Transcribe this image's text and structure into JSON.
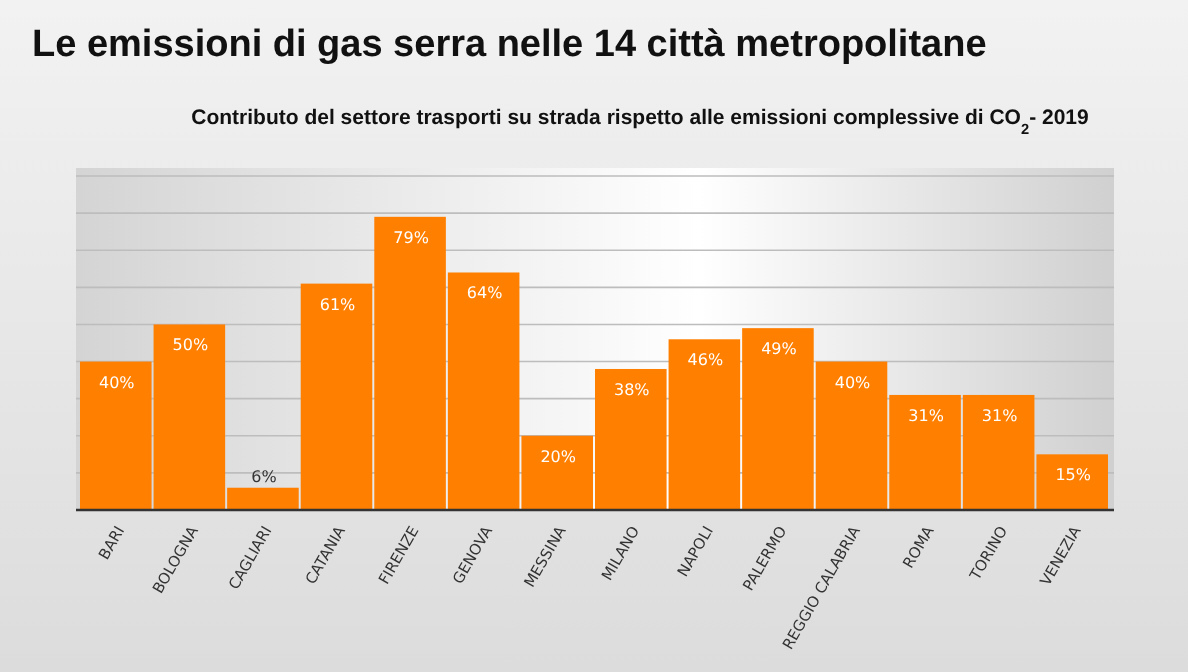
{
  "chart_data": {
    "type": "bar",
    "title": "Le emissioni di gas serra nelle 14 città metropolitane",
    "subtitle": "Contributo del settore trasporti su strada rispetto alle emissioni complessive di CO$_{2}$- 2019",
    "categories": [
      "BARI",
      "BOLOGNA",
      "CAGLIARI",
      "CATANIA",
      "FIRENZE",
      "GENOVA",
      "MESSINA",
      "MILANO",
      "NAPOLI",
      "PALERMO",
      "REGGIO CALABRIA",
      "ROMA",
      "TORINO",
      "VENEZIA"
    ],
    "values": [
      40,
      50,
      6,
      61,
      79,
      64,
      20,
      38,
      46,
      49,
      40,
      31,
      31,
      15
    ],
    "value_labels": [
      "40%",
      "50%",
      "6%",
      "61%",
      "79%",
      "64%",
      "20%",
      "38%",
      "46%",
      "49%",
      "40%",
      "31%",
      "31%",
      "15%"
    ],
    "color": "#ff7f00",
    "ylim": [
      0,
      90
    ],
    "yticks": [
      {
        "value": 0,
        "label": null
      },
      {
        "value": 10,
        "label": null
      },
      {
        "value": 20,
        "label": null
      },
      {
        "value": 30,
        "label": null
      },
      {
        "value": 40,
        "label": null
      },
      {
        "value": 50,
        "label": null
      },
      {
        "value": 60,
        "label": null
      },
      {
        "value": 70,
        "label": null
      },
      {
        "value": 80,
        "label": null
      },
      {
        "value": 90,
        "label": null
      }
    ],
    "grid": "y",
    "tick_labels": "x"
  }
}
